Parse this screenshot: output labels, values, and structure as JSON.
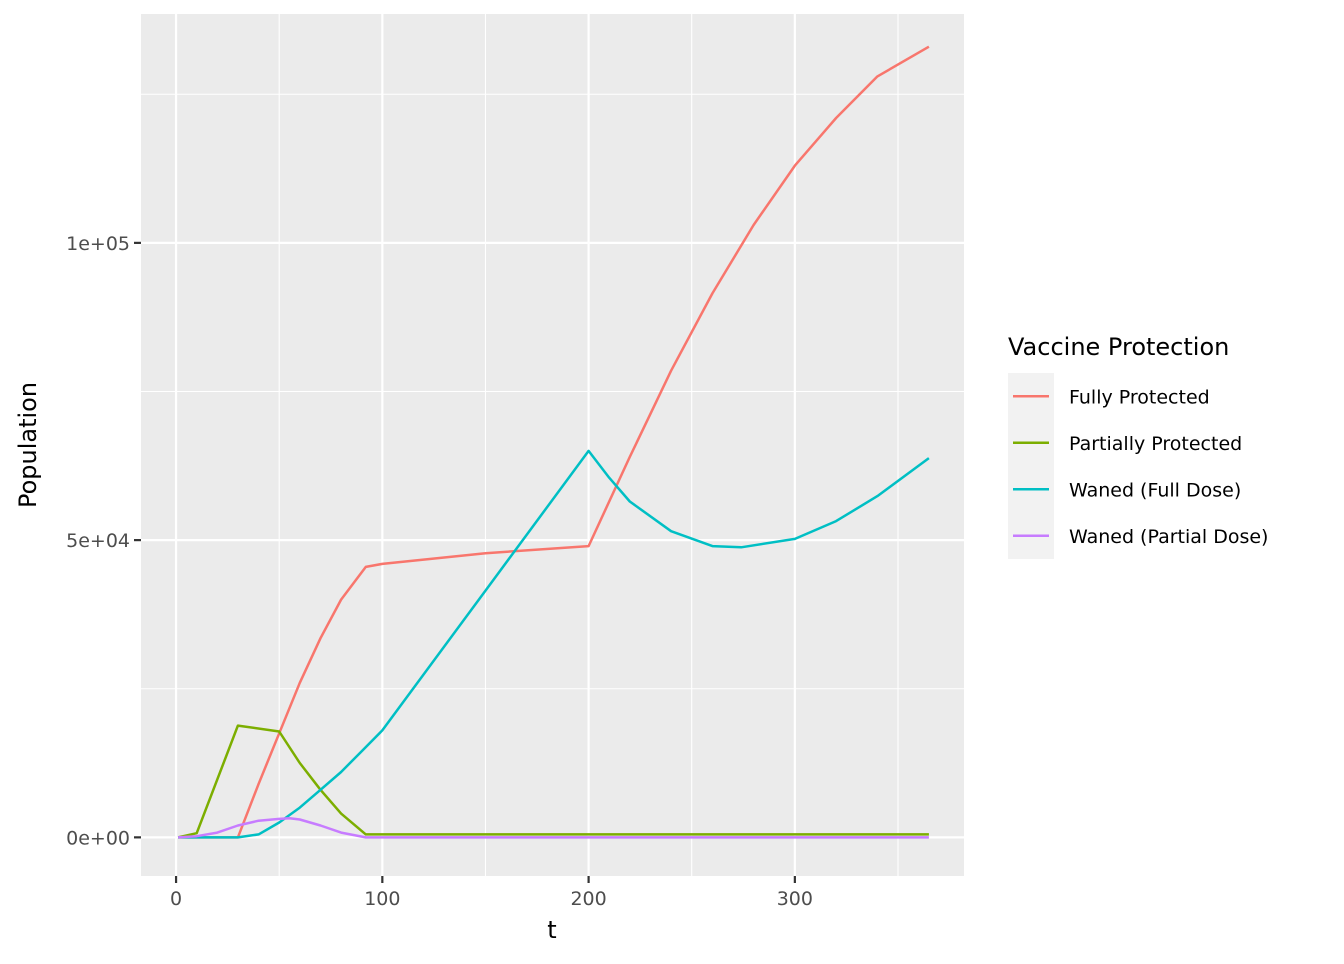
{
  "chart_data": {
    "type": "line",
    "xlabel": "t",
    "ylabel": "Population",
    "xlim": [
      -17,
      382
    ],
    "ylim": [
      -6500,
      138500
    ],
    "x_ticks": [
      0,
      100,
      200,
      300
    ],
    "x_tick_labels": [
      "0",
      "100",
      "200",
      "300"
    ],
    "y_ticks": [
      0,
      50000,
      100000
    ],
    "y_tick_labels": [
      "0e+00",
      "5e+04",
      "1e+05"
    ],
    "grid": true,
    "legend": {
      "title": "Vaccine Protection",
      "placement": "right"
    },
    "series": [
      {
        "name": "Fully Protected",
        "color": "#F8766D",
        "x": [
          1,
          30,
          40,
          50,
          60,
          70,
          80,
          92,
          100,
          150,
          200,
          220,
          240,
          260,
          280,
          300,
          320,
          340,
          365
        ],
        "y": [
          0,
          0,
          9000,
          17500,
          26000,
          33500,
          40000,
          45500,
          46000,
          47800,
          49000,
          64000,
          78500,
          91500,
          103000,
          113000,
          121000,
          128000,
          133000
        ]
      },
      {
        "name": "Partially Protected",
        "color": "#7CAE00",
        "x": [
          1,
          10,
          30,
          50,
          60,
          70,
          80,
          92,
          100,
          200,
          300,
          365
        ],
        "y": [
          0,
          700,
          18800,
          17800,
          12500,
          8000,
          4000,
          500,
          500,
          500,
          500,
          500
        ]
      },
      {
        "name": "Waned (Full Dose)",
        "color": "#00BFC4",
        "x": [
          1,
          30,
          40,
          50,
          60,
          70,
          80,
          90,
          100,
          150,
          200,
          210,
          220,
          240,
          260,
          274,
          300,
          320,
          340,
          365
        ],
        "y": [
          0,
          0,
          500,
          2500,
          5000,
          8000,
          11000,
          14500,
          18000,
          41500,
          65000,
          60500,
          56500,
          51500,
          49000,
          48800,
          50200,
          53200,
          57400,
          63800
        ]
      },
      {
        "name": "Waned (Partial Dose)",
        "color": "#C77CFF",
        "x": [
          1,
          10,
          20,
          30,
          40,
          50,
          55,
          60,
          70,
          80,
          92,
          100,
          200,
          300,
          365
        ],
        "y": [
          0,
          200,
          800,
          2000,
          2800,
          3100,
          3200,
          3000,
          2000,
          800,
          0,
          0,
          0,
          0,
          0
        ]
      }
    ]
  }
}
